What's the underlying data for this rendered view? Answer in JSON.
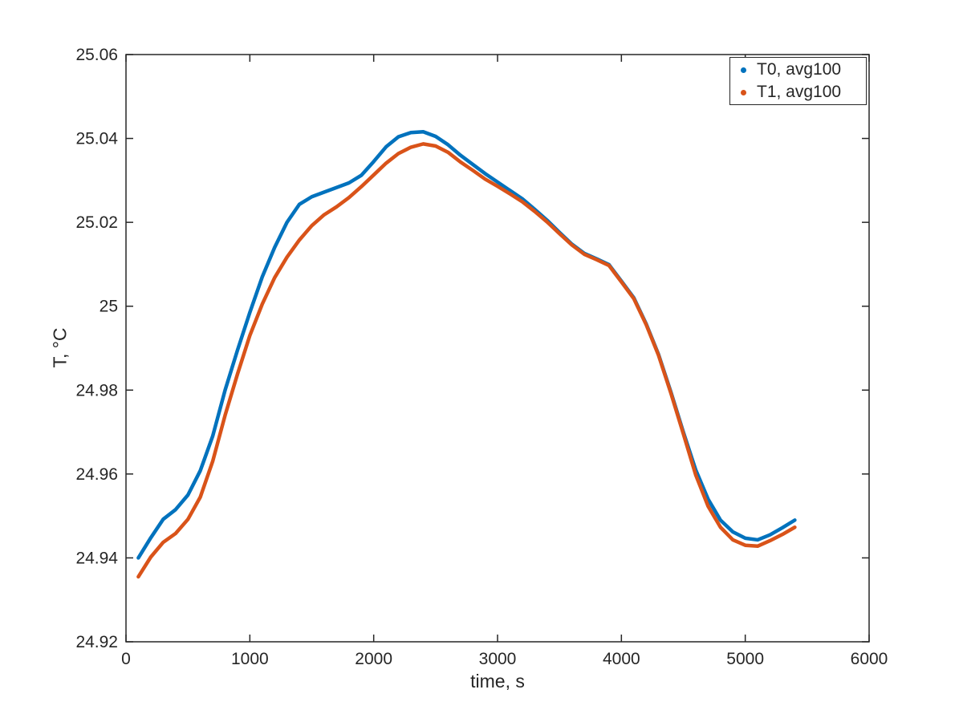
{
  "figure": {
    "background": "#ffffff",
    "text_color": "#262626",
    "axis_color": "#262626"
  },
  "chart_data": {
    "type": "line",
    "title": "",
    "xlabel": "time, s",
    "ylabel": "T, °C",
    "xlim": [
      0,
      6000
    ],
    "ylim": [
      24.92,
      25.06
    ],
    "x_ticks": [
      0,
      1000,
      2000,
      3000,
      4000,
      5000,
      6000
    ],
    "x_tick_labels": [
      "0",
      "1000",
      "2000",
      "3000",
      "4000",
      "5000",
      "6000"
    ],
    "y_ticks": [
      24.92,
      24.94,
      24.96,
      24.98,
      25,
      25.02,
      25.04,
      25.06
    ],
    "y_tick_labels": [
      "24.92",
      "24.94",
      "24.96",
      "24.98",
      "25",
      "25.02",
      "25.04",
      "25.06"
    ],
    "grid": false,
    "legend_position": "top-right",
    "line_style": "dense-dot-markers",
    "x": [
      100,
      200,
      300,
      400,
      500,
      600,
      700,
      800,
      900,
      1000,
      1100,
      1200,
      1300,
      1400,
      1500,
      1600,
      1700,
      1800,
      1900,
      2000,
      2100,
      2200,
      2300,
      2400,
      2500,
      2600,
      2700,
      2800,
      2900,
      3000,
      3100,
      3200,
      3300,
      3400,
      3500,
      3600,
      3700,
      3800,
      3900,
      4000,
      4100,
      4200,
      4300,
      4400,
      4500,
      4600,
      4700,
      4800,
      4900,
      5000,
      5100,
      5200,
      5300,
      5400
    ],
    "series": [
      {
        "name": "T0, avg100",
        "color": "#0072BD",
        "values": [
          24.94,
          24.9448,
          24.9492,
          24.9515,
          24.955,
          24.9608,
          24.969,
          24.98,
          24.9895,
          24.9985,
          25.007,
          25.014,
          25.02,
          25.0243,
          25.0261,
          25.0272,
          25.0283,
          25.0294,
          25.0312,
          25.0345,
          25.038,
          25.0404,
          25.0414,
          25.0416,
          25.0405,
          25.0385,
          25.036,
          25.0338,
          25.0316,
          25.0296,
          25.0276,
          25.0256,
          25.0231,
          25.0205,
          25.0176,
          25.0148,
          25.0126,
          25.0113,
          25.0099,
          25.006,
          25.002,
          24.9958,
          24.9885,
          24.9795,
          24.97,
          24.961,
          24.954,
          24.949,
          24.9462,
          24.9447,
          24.9443,
          24.9455,
          24.9472,
          24.949
        ]
      },
      {
        "name": "T1, avg100",
        "color": "#D95319",
        "values": [
          24.9355,
          24.9402,
          24.9437,
          24.9458,
          24.9492,
          24.9545,
          24.963,
          24.974,
          24.9838,
          24.993,
          25.0005,
          25.0068,
          25.0117,
          25.0158,
          25.0192,
          25.0218,
          25.0237,
          25.0259,
          25.0285,
          25.0313,
          25.0341,
          25.0364,
          25.0379,
          25.0387,
          25.0382,
          25.0367,
          25.0344,
          25.0324,
          25.0303,
          25.0286,
          25.0268,
          25.0249,
          25.0226,
          25.0201,
          25.0173,
          25.0146,
          25.0124,
          25.0111,
          25.0097,
          25.0058,
          25.0018,
          24.9956,
          24.9883,
          24.9792,
          24.9696,
          24.9598,
          24.9523,
          24.9473,
          24.9443,
          24.943,
          24.9428,
          24.9441,
          24.9456,
          24.9473
        ]
      }
    ]
  }
}
